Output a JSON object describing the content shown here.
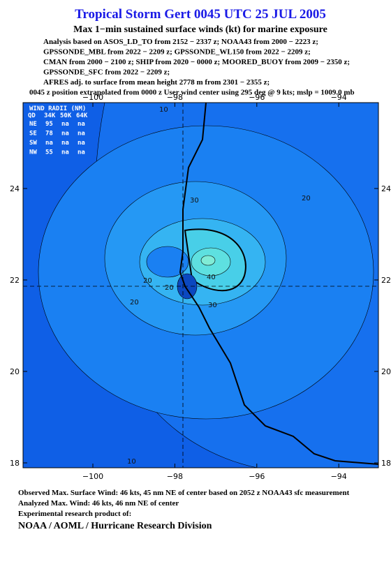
{
  "header": {
    "title": "Tropical Storm Gert 0045 UTC 25 JUL 2005",
    "subtitle": "Max 1−min sustained surface winds (kt) for marine exposure",
    "lines": [
      "Analysis based on  ASOS_LD_TO from 2152 − 2337 z;  NOAA43 from 2000 − 2223 z;",
      "GPSSONDE_MBL from 2022 − 2209 z;  GPSSONDE_WL150 from 2022 − 2209 z;",
      "CMAN from 2000 − 2100 z;  SHIP from 2020 − 0000 z;  MOORED_BUOY from 2009 − 2350 z;",
      "GPSSONDE_SFC from 2022 − 2209 z;",
      "AFRES adj. to surface from mean height 2778 m from 2301 − 2355 z;",
      "0045 z position extrapolated from 0000 z User wind center using 295 deg @ 9 kts; mslp = 1009.0 mb"
    ]
  },
  "map": {
    "lon_ticks": [
      {
        "value": -100,
        "label": "−100"
      },
      {
        "value": -98,
        "label": "−98"
      },
      {
        "value": -96,
        "label": "−96"
      },
      {
        "value": -94,
        "label": "−94"
      }
    ],
    "lat_ticks": [
      24,
      22,
      20,
      18
    ],
    "wind_radii": {
      "title": "WIND RADII (NM)",
      "header": [
        "QD",
        "34K",
        "50K",
        "64K"
      ],
      "rows": [
        [
          "NE",
          "95",
          "na",
          "na"
        ],
        [
          "SE",
          "78",
          "na",
          "na"
        ],
        [
          "SW",
          "na",
          "na",
          "na"
        ],
        [
          "NW",
          "55",
          "na",
          "na"
        ]
      ]
    },
    "contour_labels": [
      "10",
      "20",
      "30",
      "20",
      "30",
      "20",
      "40",
      "20",
      "10"
    ]
  },
  "footer": {
    "lines": [
      "Observed Max. Surface Wind: 46 kts, 45 nm NE of center based on 2052 z NOAA43 sfc measurement",
      "Analyzed Max. Wind: 46 kts, 46 nm NE of center",
      "Experimental research product of:"
    ],
    "org": "NOAA / AOML / Hurricane Research Division"
  }
}
